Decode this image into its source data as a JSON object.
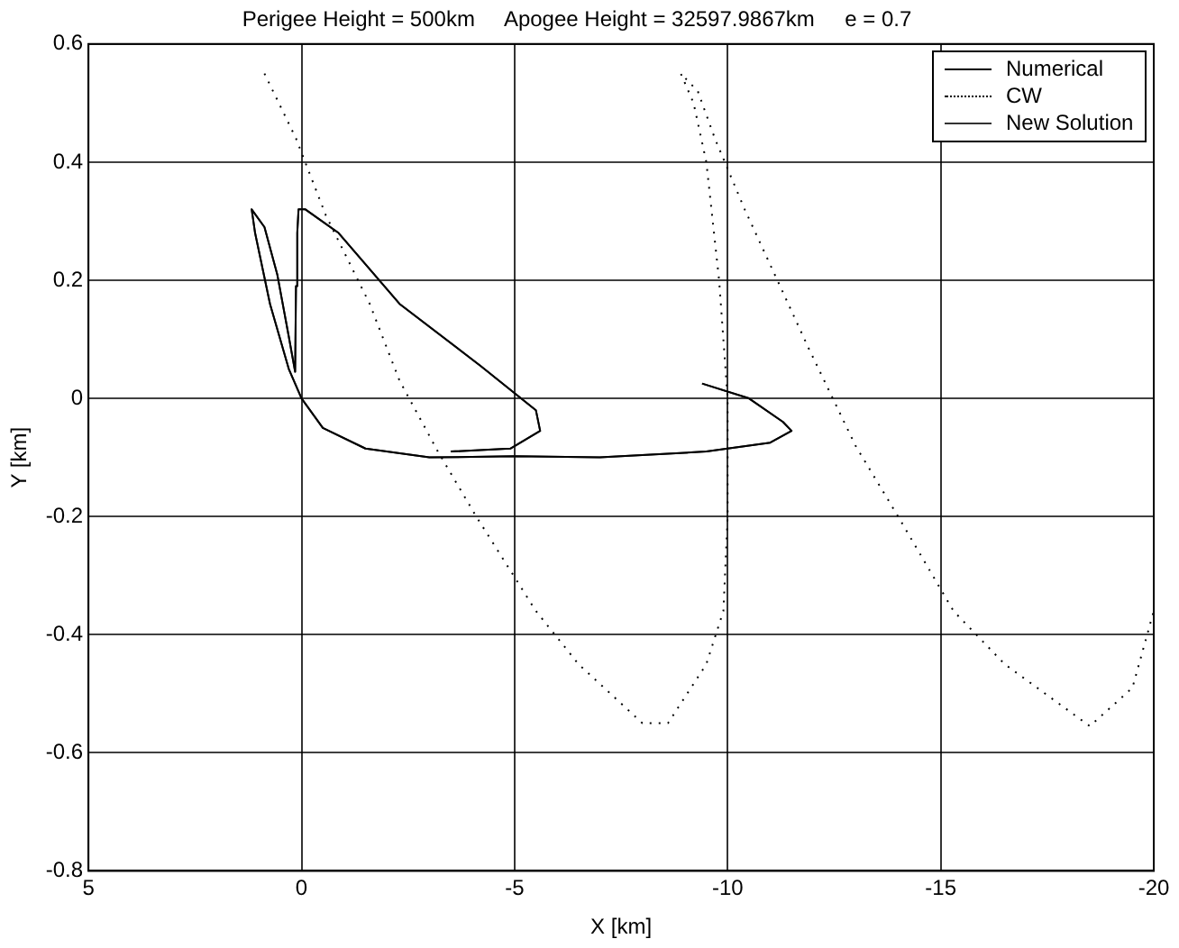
{
  "chart_data": {
    "type": "line",
    "title": "Perigee Height = 500km     Apogee Height = 32597.9867km     e = 0.7",
    "xlabel": "X [km]",
    "ylabel": "Y [km]",
    "xlim": [
      5,
      -20
    ],
    "xticks": [
      5,
      0,
      -5,
      -10,
      -15,
      -20
    ],
    "ylim": [
      -0.8,
      0.6
    ],
    "yticks": [
      -0.8,
      -0.6,
      -0.4,
      -0.2,
      0,
      0.2,
      0.4,
      0.6
    ],
    "grid": true,
    "legend": "top right",
    "marker": "none",
    "series": [
      {
        "name": "Numerical",
        "color": "#000000",
        "line_style": "solid",
        "x": [
          -9.4,
          -10.5,
          -11.3,
          -11.5,
          -11,
          -9.5,
          -7,
          -5,
          -3,
          -1.5,
          -0.5,
          0,
          0.3,
          0.74,
          1.09,
          1.17,
          0.87,
          0.57,
          0.3,
          0.15,
          0.13,
          0.1,
          0.07,
          -0.09,
          -0.87,
          -2.3,
          -4.2,
          -5.5,
          -5.6,
          -4.9,
          -3.5
        ],
        "values": [
          0.025,
          0,
          -0.04,
          -0.055,
          -0.075,
          -0.09,
          -0.1,
          -0.098,
          -0.1,
          -0.085,
          -0.05,
          0.0,
          0.05,
          0.16,
          0.28,
          0.32,
          0.29,
          0.21,
          0.105,
          0.045,
          0.19,
          0.28,
          0.32,
          0.32,
          0.28,
          0.16,
          0.055,
          -0.02,
          -0.055,
          -0.085,
          -0.09
        ]
      },
      {
        "name": "CW",
        "color": "#000000",
        "line_style": "dotted",
        "x": [
          0.87,
          0.13,
          -0.57,
          -1.6,
          -2.3,
          -3.2,
          -4.1,
          -5.5,
          -6.5,
          -8.0,
          -8.6,
          -9.5,
          -9.9,
          -10,
          -10,
          -9.8,
          -9.5,
          -9.2,
          -8.9,
          -9.3,
          -9.7,
          -10.4,
          -11.9,
          -13,
          -14,
          -15.3,
          -16.5,
          -18.5,
          -19.5,
          -20
        ],
        "values": [
          0.55,
          0.44,
          0.31,
          0.16,
          0.03,
          -0.09,
          -0.2,
          -0.36,
          -0.45,
          -0.55,
          -0.55,
          -0.45,
          -0.36,
          -0.2,
          0,
          0.2,
          0.4,
          0.5,
          0.55,
          0.52,
          0.44,
          0.32,
          0.085,
          -0.08,
          -0.2,
          -0.36,
          -0.45,
          -0.555,
          -0.49,
          -0.36
        ]
      },
      {
        "name": "New Solution",
        "color": "#333333",
        "line_style": "solid",
        "x": [
          -9.4,
          -10.5,
          -11.3,
          -11.5,
          -11,
          -9.5,
          -7,
          -5,
          -3,
          -1.5,
          -0.5,
          0,
          0.3,
          0.74,
          1.09,
          1.17,
          0.87,
          0.57,
          0.3,
          0.15,
          0.13,
          0.1,
          0.07,
          -0.09,
          -0.87,
          -2.3,
          -4.2,
          -5.5,
          -5.6,
          -4.9,
          -3.5
        ],
        "values": [
          0.025,
          0,
          -0.04,
          -0.055,
          -0.075,
          -0.09,
          -0.1,
          -0.098,
          -0.1,
          -0.085,
          -0.05,
          0.0,
          0.05,
          0.16,
          0.28,
          0.32,
          0.29,
          0.21,
          0.105,
          0.045,
          0.19,
          0.28,
          0.32,
          0.32,
          0.28,
          0.16,
          0.055,
          -0.02,
          -0.055,
          -0.085,
          -0.09
        ]
      }
    ]
  }
}
